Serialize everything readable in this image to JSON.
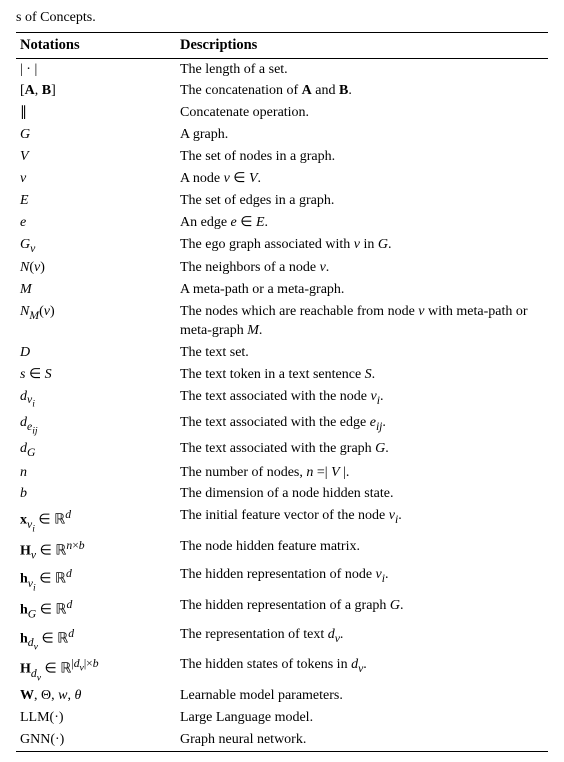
{
  "fragment": "s of Concepts.",
  "headers": {
    "notation": "Notations",
    "description": "Descriptions"
  },
  "rows": [
    {
      "notation": "| · |",
      "description": "The length of a set."
    },
    {
      "notation": "[<b>A</b>, <b>B</b>]",
      "description": "The concatenation of <b>A</b> and <b>B</b>."
    },
    {
      "notation": "∥",
      "description": "Concatenate operation."
    },
    {
      "notation": "<span class='cal'>G</span>",
      "description": "A graph."
    },
    {
      "notation": "<span class='cal'>V</span>",
      "description": "The set of nodes in a graph."
    },
    {
      "notation": "<i>v</i>",
      "description": "A node <i>v</i> ∈ <span class='cal'>V</span>."
    },
    {
      "notation": "<span class='cal'>E</span>",
      "description": "The set of edges in a graph."
    },
    {
      "notation": "<i>e</i>",
      "description": "An edge <i>e</i> ∈ <span class='cal'>E</span>."
    },
    {
      "notation": "<span class='cal'>G</span><sub><i>v</i></sub>",
      "description": "The ego graph associated with <i>v</i> in <span class='cal'>G</span>."
    },
    {
      "notation": "<i>N</i>(<i>v</i>)",
      "description": "The neighbors of a node <i>v</i>."
    },
    {
      "notation": "<i>M</i>",
      "description": "A meta-path or a meta-graph."
    },
    {
      "notation": "<i>N</i><sub><i>M</i></sub>(<i>v</i>)",
      "description": "The nodes which are reachable from node <i>v</i> with meta-path or meta-graph <i>M</i>."
    },
    {
      "notation": "<span class='cal'>D</span>",
      "description": "The text set."
    },
    {
      "notation": "<i>s</i> ∈ <span class='cal'>S</span>",
      "description": "The text token in a text sentence <span class='cal'>S</span>."
    },
    {
      "notation": "<i>d</i><sub><i>v</i><sub><i>i</i></sub></sub>",
      "description": "The text associated with the node <i>v</i><sub><i>i</i></sub>."
    },
    {
      "notation": "<i>d</i><sub><i>e</i><sub><i>ij</i></sub></sub>",
      "description": "The text associated with the edge <i>e</i><sub><i>ij</i></sub>."
    },
    {
      "notation": "<i>d</i><sub><span class='cal'>G</span></sub>",
      "description": "The text associated with the graph <span class='cal'>G</span>."
    },
    {
      "notation": "<i>n</i>",
      "description": "The number of nodes, <i>n</i> =| <i>V</i> |."
    },
    {
      "notation": "<i>b</i>",
      "description": "The dimension of a node hidden state."
    },
    {
      "notation": "<b>x</b><sub><i>v</i><sub><i>i</i></sub></sub> ∈ <span class='bb'>ℝ</span><sup><i>d</i></sup>",
      "description": "The initial feature vector of the node <i>v</i><sub><i>i</i></sub>."
    },
    {
      "notation": "<b>H</b><sub><i>v</i></sub> ∈ <span class='bb'>ℝ</span><sup><i>n</i>×<i>b</i></sup>",
      "description": "The node hidden feature matrix."
    },
    {
      "notation": "<b>h</b><sub><i>v</i><sub><i>i</i></sub></sub> ∈ <span class='bb'>ℝ</span><sup><i>d</i></sup>",
      "description": "The hidden representation of node <i>v</i><sub><i>i</i></sub>."
    },
    {
      "notation": "<b>h</b><sub><span class='cal'>G</span></sub> ∈ <span class='bb'>ℝ</span><sup><i>d</i></sup>",
      "description": "The hidden representation of a graph <span class='cal'>G</span>."
    },
    {
      "notation": "<b>h</b><sub><i>d</i><sub><i>v</i></sub></sub> ∈ <span class='bb'>ℝ</span><sup><i>d</i></sup>",
      "description": "The representation of text <i>d</i><sub><i>v</i></sub>."
    },
    {
      "notation": "<b>H</b><sub><i>d</i><sub><i>v</i></sub></sub> ∈ <span class='bb'>ℝ</span><sup>|<i>d</i><sub><i>v</i></sub>|×<i>b</i></sup>",
      "description": "The hidden states of tokens in <i>d</i><sub><i>v</i></sub>."
    },
    {
      "notation": "<b>W</b>, Θ, <i>w</i>, <i>θ</i>",
      "description": "Learnable model parameters."
    },
    {
      "notation": "LLM(·)",
      "description": "Large Language model."
    },
    {
      "notation": "GNN(·)",
      "description": "Graph neural network."
    }
  ]
}
